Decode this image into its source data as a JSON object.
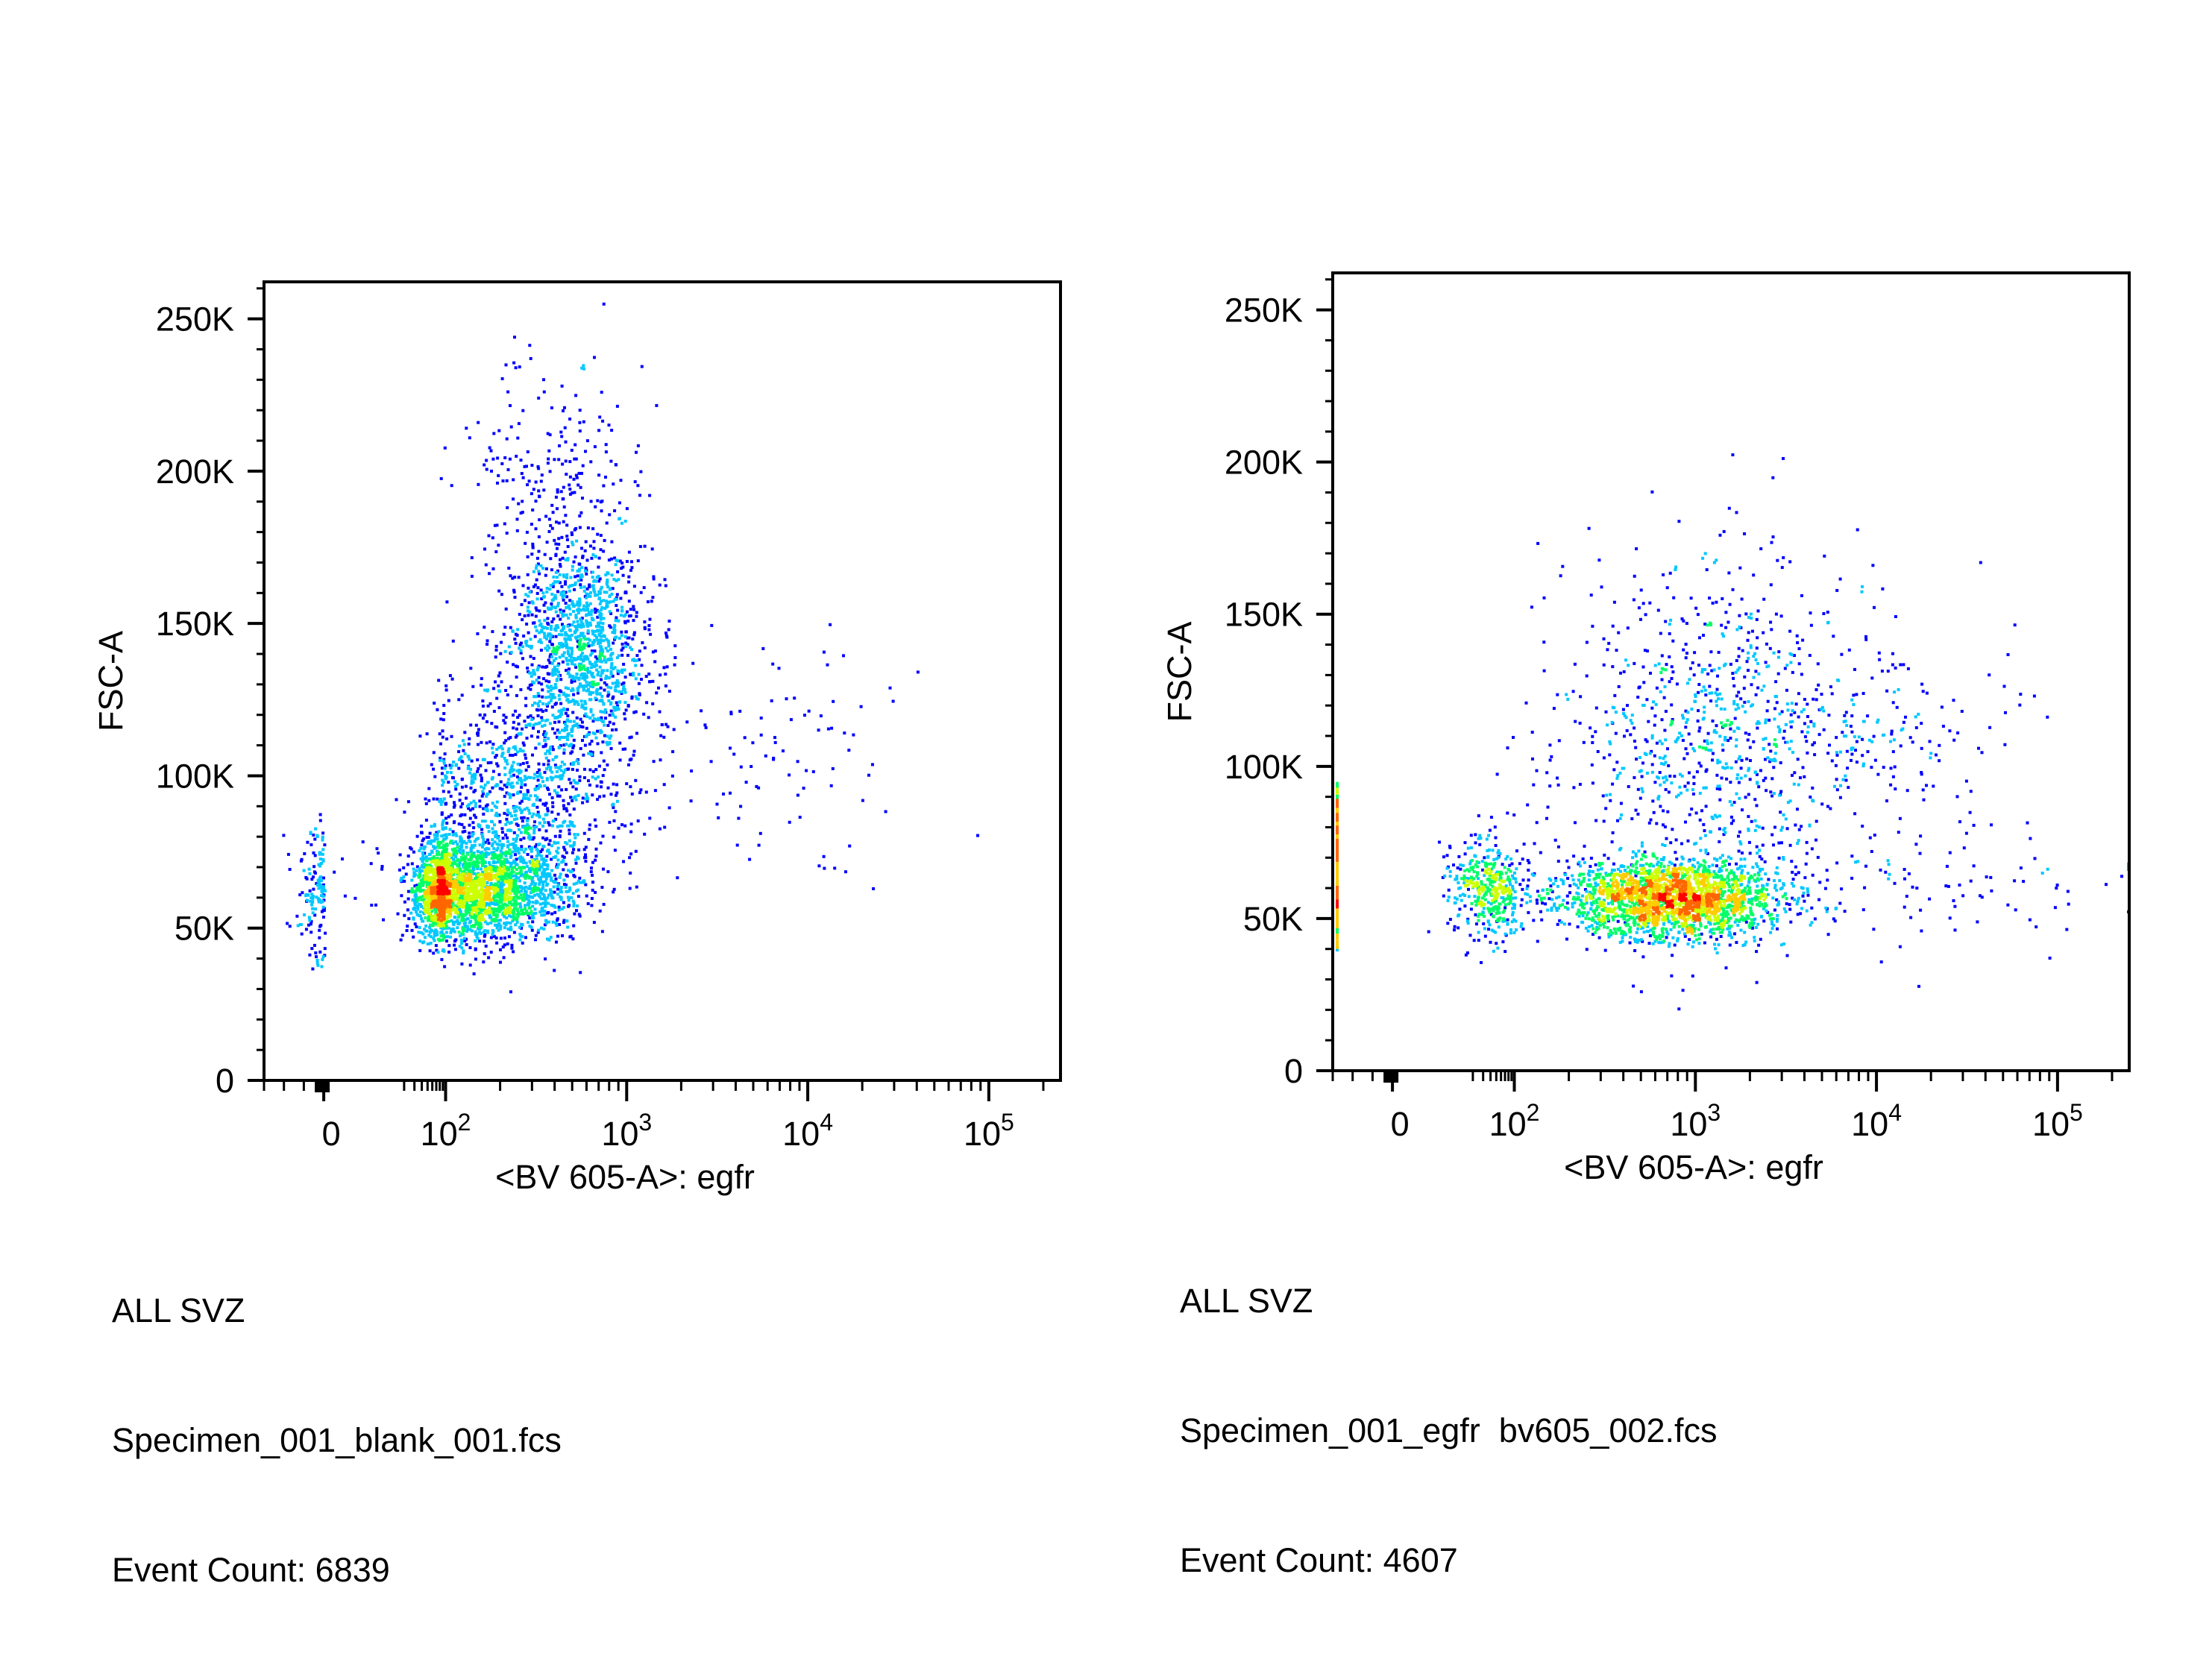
{
  "chart_data": [
    {
      "type": "scatter",
      "subtype": "flow-cytometry-density-plot",
      "title": "",
      "xlabel": "<BV 605-A>: egfr",
      "ylabel": "FSC-A",
      "x_scale": "biexponential",
      "y_scale": "linear",
      "ylim": [
        0,
        262144
      ],
      "xlim": [
        -300,
        262144
      ],
      "x_ticks": [
        {
          "value": 0,
          "label": "0"
        },
        {
          "value": 100,
          "base": "10",
          "exp": "2"
        },
        {
          "value": 1000,
          "base": "10",
          "exp": "3"
        },
        {
          "value": 10000,
          "base": "10",
          "exp": "4"
        },
        {
          "value": 100000,
          "base": "10",
          "exp": "5"
        }
      ],
      "y_ticks": [
        {
          "value": 0,
          "label": "0"
        },
        {
          "value": 50000,
          "label": "50K"
        },
        {
          "value": 100000,
          "label": "100K"
        },
        {
          "value": 150000,
          "label": "150K"
        },
        {
          "value": 200000,
          "label": "200K"
        },
        {
          "value": 250000,
          "label": "250K"
        }
      ],
      "grid": false,
      "colormap": [
        "#0000ff",
        "#00c8ff",
        "#00ff66",
        "#ccff00",
        "#ffcc00",
        "#ff6600",
        "#ff0000"
      ],
      "clusters": [
        {
          "x_center": 130,
          "x_spread_decades": 0.28,
          "y_center": 63000,
          "y_spread": 8000,
          "n": 2600
        },
        {
          "x_center": 550,
          "x_spread_decades": 0.2,
          "y_center": 142000,
          "y_spread": 17000,
          "n": 1300
        },
        {
          "x_center": 250,
          "x_spread_decades": 0.3,
          "y_center": 92000,
          "y_spread": 18000,
          "n": 1100
        },
        {
          "x_center": 400,
          "x_spread_decades": 0.25,
          "y_center": 195000,
          "y_spread": 22000,
          "n": 250
        },
        {
          "x_center": 6000,
          "x_spread_decades": 0.35,
          "y_center": 108000,
          "y_spread": 18000,
          "n": 90
        },
        {
          "x_center": 0,
          "x_spread_decades": 0.0,
          "x_linear_spread": 70,
          "y_center": 64000,
          "y_spread": 12000,
          "n": 300
        }
      ],
      "info": {
        "population": "ALL SVZ",
        "file": "Specimen_001_blank_001.fcs",
        "event_count": "Event Count: 6839"
      }
    },
    {
      "type": "scatter",
      "subtype": "flow-cytometry-density-plot",
      "title": "",
      "xlabel": "<BV 605-A>: egfr",
      "ylabel": "FSC-A",
      "x_scale": "biexponential",
      "y_scale": "linear",
      "ylim": [
        0,
        262144
      ],
      "xlim": [
        -300,
        262144
      ],
      "x_ticks": [
        {
          "value": 0,
          "label": "0"
        },
        {
          "value": 100,
          "base": "10",
          "exp": "2"
        },
        {
          "value": 1000,
          "base": "10",
          "exp": "3"
        },
        {
          "value": 10000,
          "base": "10",
          "exp": "4"
        },
        {
          "value": 100000,
          "base": "10",
          "exp": "5"
        }
      ],
      "y_ticks": [
        {
          "value": 0,
          "label": "0"
        },
        {
          "value": 50000,
          "label": "50K"
        },
        {
          "value": 100000,
          "label": "100K"
        },
        {
          "value": 150000,
          "label": "150K"
        },
        {
          "value": 200000,
          "label": "200K"
        },
        {
          "value": 250000,
          "label": "250K"
        }
      ],
      "grid": false,
      "colormap": [
        "#0000ff",
        "#00c8ff",
        "#00ff66",
        "#ccff00",
        "#ffcc00",
        "#ff6600",
        "#ff0000"
      ],
      "clusters": [
        {
          "x_center": 750,
          "x_spread_decades": 0.3,
          "y_center": 57000,
          "y_spread": 6500,
          "n": 2200
        },
        {
          "x_center": 1200,
          "x_spread_decades": 0.45,
          "y_center": 110000,
          "y_spread": 30000,
          "n": 900
        },
        {
          "x_center": 8000,
          "x_spread_decades": 0.4,
          "y_center": 110000,
          "y_spread": 12000,
          "n": 150
        },
        {
          "x_center": 40,
          "x_spread_decades": 0.4,
          "y_center": 60000,
          "y_spread": 8000,
          "n": 450
        },
        {
          "x_center": 30000,
          "x_spread_decades": 0.5,
          "y_center": 62000,
          "y_spread": 12000,
          "n": 80
        }
      ],
      "axis_pileup": {
        "x": -300,
        "y_from": 40000,
        "y_to": 95000,
        "n": 300
      },
      "info": {
        "population": "ALL SVZ",
        "file": "Specimen_001_egfr  bv605_002.fcs",
        "event_count": "Event Count: 4607"
      }
    }
  ]
}
